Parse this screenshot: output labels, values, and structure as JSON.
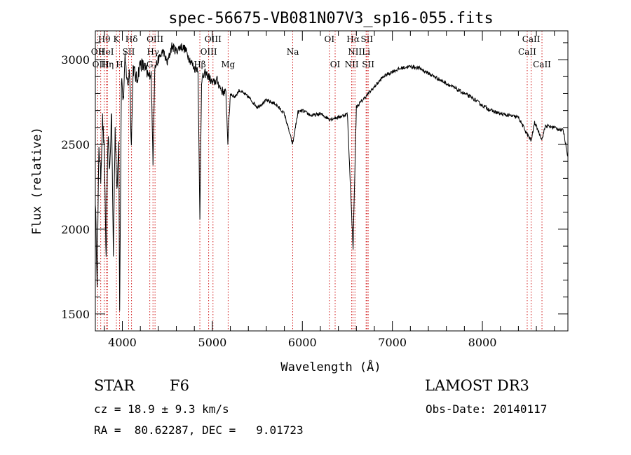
{
  "chart_data": {
    "type": "line",
    "title": "spec-56675-VB081N07V3_sp16-055.fits",
    "xlabel": "Wavelength (Å)",
    "ylabel": "Flux (relative)",
    "xlim": [
      3700,
      8950
    ],
    "ylim": [
      1400,
      3170
    ],
    "x_ticks": [
      4000,
      5000,
      6000,
      7000,
      8000
    ],
    "x_tick_labels": [
      "4000",
      "5000",
      "6000",
      "7000",
      "8000"
    ],
    "y_ticks": [
      1500,
      2000,
      2500,
      3000
    ],
    "y_tick_labels": [
      "1500",
      "2000",
      "2500",
      "3000"
    ],
    "grid": false,
    "series": [
      {
        "name": "flux",
        "anchors": [
          [
            3700,
            2180
          ],
          [
            3720,
            1700
          ],
          [
            3740,
            2500
          ],
          [
            3760,
            2300
          ],
          [
            3780,
            2650
          ],
          [
            3800,
            2450
          ],
          [
            3820,
            1800
          ],
          [
            3840,
            2550
          ],
          [
            3860,
            2350
          ],
          [
            3880,
            2700
          ],
          [
            3900,
            1850
          ],
          [
            3920,
            2600
          ],
          [
            3940,
            2200
          ],
          [
            3960,
            2550
          ],
          [
            3970,
            1550
          ],
          [
            3990,
            2900
          ],
          [
            4010,
            2750
          ],
          [
            4030,
            3000
          ],
          [
            4060,
            2850
          ],
          [
            4080,
            2950
          ],
          [
            4100,
            2500
          ],
          [
            4120,
            2950
          ],
          [
            4160,
            2880
          ],
          [
            4200,
            2980
          ],
          [
            4250,
            2950
          ],
          [
            4290,
            2900
          ],
          [
            4320,
            2920
          ],
          [
            4340,
            2400
          ],
          [
            4360,
            2950
          ],
          [
            4400,
            3000
          ],
          [
            4450,
            3050
          ],
          [
            4500,
            2980
          ],
          [
            4550,
            3080
          ],
          [
            4600,
            3050
          ],
          [
            4650,
            3080
          ],
          [
            4700,
            3060
          ],
          [
            4750,
            3000
          ],
          [
            4800,
            2950
          ],
          [
            4840,
            2950
          ],
          [
            4861,
            2050
          ],
          [
            4880,
            2880
          ],
          [
            4920,
            2920
          ],
          [
            4960,
            2900
          ],
          [
            5000,
            2860
          ],
          [
            5050,
            2880
          ],
          [
            5100,
            2820
          ],
          [
            5150,
            2800
          ],
          [
            5172,
            2520
          ],
          [
            5200,
            2800
          ],
          [
            5250,
            2780
          ],
          [
            5300,
            2820
          ],
          [
            5400,
            2780
          ],
          [
            5500,
            2720
          ],
          [
            5600,
            2760
          ],
          [
            5700,
            2740
          ],
          [
            5800,
            2680
          ],
          [
            5892,
            2500
          ],
          [
            5950,
            2690
          ],
          [
            6000,
            2700
          ],
          [
            6100,
            2670
          ],
          [
            6200,
            2680
          ],
          [
            6300,
            2650
          ],
          [
            6400,
            2660
          ],
          [
            6500,
            2680
          ],
          [
            6563,
            1890
          ],
          [
            6600,
            2720
          ],
          [
            6700,
            2780
          ],
          [
            6800,
            2840
          ],
          [
            6900,
            2900
          ],
          [
            7000,
            2930
          ],
          [
            7100,
            2950
          ],
          [
            7200,
            2960
          ],
          [
            7300,
            2950
          ],
          [
            7400,
            2920
          ],
          [
            7500,
            2890
          ],
          [
            7600,
            2860
          ],
          [
            7700,
            2830
          ],
          [
            7800,
            2800
          ],
          [
            7900,
            2770
          ],
          [
            8000,
            2730
          ],
          [
            8100,
            2700
          ],
          [
            8200,
            2680
          ],
          [
            8300,
            2670
          ],
          [
            8400,
            2660
          ],
          [
            8498,
            2560
          ],
          [
            8542,
            2520
          ],
          [
            8580,
            2630
          ],
          [
            8662,
            2530
          ],
          [
            8700,
            2610
          ],
          [
            8800,
            2600
          ],
          [
            8900,
            2580
          ],
          [
            8950,
            2430
          ]
        ]
      }
    ],
    "line_markers": [
      {
        "label": "Hθ",
        "x": 3798,
        "row": 0
      },
      {
        "label": "OII",
        "x": 3727,
        "row": 1
      },
      {
        "label": "OIII",
        "x": 3760,
        "row": 2
      },
      {
        "label": "HeI",
        "x": 3820,
        "row": 1
      },
      {
        "label": "Hη",
        "x": 3835,
        "row": 2
      },
      {
        "label": "K",
        "x": 3934,
        "row": 0
      },
      {
        "label": "SII",
        "x": 4070,
        "row": 1
      },
      {
        "label": "H",
        "x": 3969,
        "row": 2
      },
      {
        "label": "Hδ",
        "x": 4102,
        "row": 0
      },
      {
        "label": "OIII",
        "x": 4363,
        "row": 0
      },
      {
        "label": "Hγ",
        "x": 4340,
        "row": 1
      },
      {
        "label": "G",
        "x": 4305,
        "row": 2
      },
      {
        "label": "OIII",
        "x": 5007,
        "row": 0
      },
      {
        "label": "OIII",
        "x": 4959,
        "row": 1
      },
      {
        "label": "Hβ",
        "x": 4861,
        "row": 2
      },
      {
        "label": "Mg",
        "x": 5175,
        "row": 2
      },
      {
        "label": "Na",
        "x": 5893,
        "row": 1
      },
      {
        "label": "OI",
        "x": 6300,
        "row": 0
      },
      {
        "label": "OI",
        "x": 6364,
        "row": 2
      },
      {
        "label": "Hα",
        "x": 6563,
        "row": 0
      },
      {
        "label": "SII",
        "x": 6717,
        "row": 0
      },
      {
        "label": "NII",
        "x": 6584,
        "row": 1
      },
      {
        "label": "Li",
        "x": 6708,
        "row": 1
      },
      {
        "label": "NII",
        "x": 6548,
        "row": 2
      },
      {
        "label": "SII",
        "x": 6731,
        "row": 2
      },
      {
        "label": "CaII",
        "x": 8542,
        "row": 0
      },
      {
        "label": "CaII",
        "x": 8498,
        "row": 1
      },
      {
        "label": "CaII",
        "x": 8662,
        "row": 2
      }
    ]
  },
  "info": {
    "object_class": "STAR",
    "subclass": "F6",
    "survey": "LAMOST DR3",
    "redshift": "cz = 18.9 ± 9.3 km/s",
    "obs_date": "Obs-Date: 20140117",
    "coords": "RA =  80.62287, DEC =   9.01723"
  }
}
